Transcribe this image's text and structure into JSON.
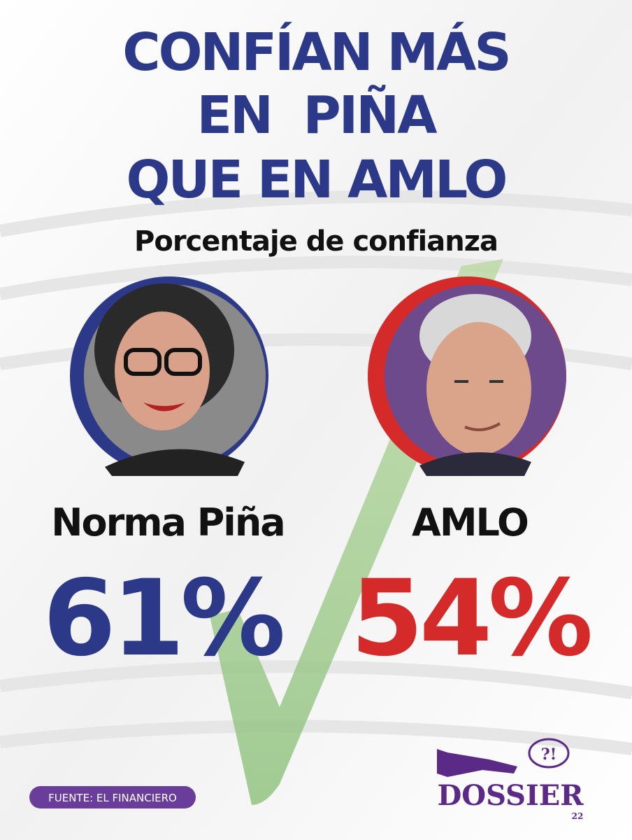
{
  "title_lines": [
    "CONFÍAN MÁS",
    "EN  PIÑA",
    "QUE EN AMLO"
  ],
  "subtitle": "Porcentaje de confianza",
  "people": [
    {
      "name": "Norma Piña",
      "percent": "61%"
    },
    {
      "name": "AMLO",
      "percent": "54%"
    }
  ],
  "source": "FUENTE: EL FINANCIERO",
  "logo": {
    "mark": "?!",
    "name": "DOSSIER",
    "number": "22"
  }
}
